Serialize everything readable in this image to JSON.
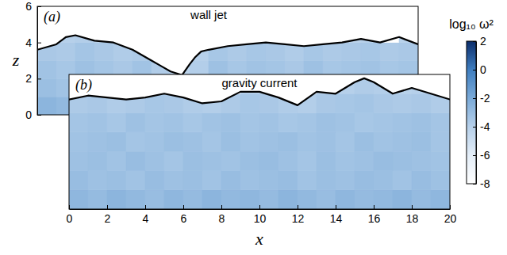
{
  "chart_data": [
    {
      "type": "heatmap",
      "panel_label": "(a)",
      "title": "wall jet",
      "ylabel": "z",
      "xlim": [
        0,
        20
      ],
      "ylim": [
        0,
        6
      ],
      "yticks": [
        0,
        2,
        4,
        6
      ],
      "tick_labels": "y",
      "heatmap": {
        "x_edges": [
          0,
          1,
          2,
          3,
          4,
          5,
          6,
          7,
          8,
          9,
          10,
          11,
          12,
          13,
          14,
          15,
          16,
          17,
          18,
          19,
          20
        ],
        "z_edges": [
          0,
          1,
          2,
          3,
          4,
          5,
          6
        ],
        "values": [
          [
            -2.6,
            -2.8,
            -2.5,
            -2.7,
            -2.9,
            -2.6,
            -2.8,
            -3.0,
            -2.7,
            -2.6,
            -2.8,
            -2.5,
            -2.7,
            -2.9,
            -2.6,
            -2.8,
            -2.7,
            -2.5,
            -2.8,
            -2.6
          ],
          [
            -3.1,
            -3.3,
            -3.0,
            -3.2,
            -3.4,
            -3.1,
            -3.5,
            -3.6,
            -3.2,
            -3.0,
            -3.3,
            -3.1,
            -3.2,
            -3.4,
            -3.0,
            -3.3,
            -3.2,
            -3.1,
            -3.3,
            -3.2
          ],
          [
            -3.3,
            -3.5,
            -3.2,
            -3.4,
            -3.6,
            -3.3,
            -3.8,
            -4.2,
            -3.9,
            -3.2,
            -3.5,
            -3.3,
            -3.4,
            -3.6,
            -3.2,
            -3.5,
            -3.4,
            -3.3,
            -3.5,
            -3.4
          ],
          [
            -3.6,
            -3.7,
            -3.4,
            -3.6,
            -3.8,
            -3.7,
            -8,
            -8,
            -4.0,
            -3.5,
            -3.7,
            -3.5,
            -3.6,
            -3.8,
            -3.5,
            -3.7,
            -3.6,
            -3.5,
            -3.7,
            -3.6
          ],
          [
            -8,
            -4.0,
            -3.9,
            -4.1,
            -8,
            -8,
            -8,
            -8,
            -8,
            -8,
            -8,
            -8,
            -8,
            -8,
            -8,
            -8,
            -4.2,
            -4.0,
            -8,
            -4.1
          ],
          [
            -8,
            -8,
            -8,
            -8,
            -8,
            -8,
            -8,
            -8,
            -8,
            -8,
            -8,
            -8,
            -8,
            -8,
            -8,
            -8,
            -8,
            -8,
            -8,
            -8
          ]
        ]
      },
      "series": [
        {
          "type": "line",
          "color": "#000000",
          "x": [
            0,
            1,
            1.5,
            2,
            3,
            4,
            5,
            6,
            6.5,
            7,
            7.6,
            8,
            8.3,
            8.6,
            9,
            10,
            11,
            12,
            13,
            14,
            15,
            16,
            17,
            18,
            19,
            20
          ],
          "values": [
            3.6,
            3.9,
            4.3,
            4.4,
            4.1,
            4.0,
            3.6,
            3.0,
            2.7,
            2.4,
            2.2,
            2.8,
            3.2,
            3.5,
            3.6,
            3.8,
            3.9,
            4.0,
            3.9,
            3.8,
            3.9,
            4.0,
            4.2,
            4.0,
            4.3,
            3.9
          ]
        }
      ],
      "colorbar": {
        "label": "log₁₀ ω²",
        "range": [
          -8,
          2
        ],
        "ticks": [
          -8,
          -6,
          -4,
          -2,
          0,
          2
        ]
      }
    },
    {
      "type": "heatmap",
      "panel_label": "(b)",
      "title": "gravity current",
      "xlabel": "x",
      "xlim": [
        0,
        20
      ],
      "ylim": [
        0,
        7
      ],
      "xticks": [
        0,
        2,
        4,
        6,
        8,
        10,
        12,
        14,
        16,
        18,
        20
      ],
      "tick_labels": "x",
      "heatmap": {
        "x_edges": [
          0,
          1,
          2,
          3,
          4,
          5,
          6,
          7,
          8,
          9,
          10,
          11,
          12,
          13,
          14,
          15,
          16,
          17,
          18,
          19,
          20
        ],
        "z_edges": [
          0,
          1,
          2,
          3,
          4,
          5,
          6,
          7
        ],
        "values": [
          [
            -2.7,
            -2.9,
            -2.6,
            -2.8,
            -3.0,
            -2.7,
            -2.9,
            -2.6,
            -2.8,
            -2.7,
            -2.9,
            -2.6,
            -2.8,
            -3.0,
            -2.7,
            -2.9,
            -2.8,
            -2.6,
            -2.9,
            -2.7
          ],
          [
            -3.0,
            -3.2,
            -3.1,
            -3.3,
            -3.0,
            -3.2,
            -3.1,
            -3.3,
            -3.0,
            -3.2,
            -3.1,
            -3.0,
            -3.3,
            -3.1,
            -3.2,
            -3.0,
            -3.1,
            -3.3,
            -3.0,
            -3.2
          ],
          [
            -3.2,
            -3.1,
            -3.3,
            -3.0,
            -3.2,
            -3.4,
            -3.1,
            -3.2,
            -3.3,
            -3.1,
            -3.0,
            -3.2,
            -3.4,
            -3.1,
            -3.3,
            -3.2,
            -3.0,
            -3.1,
            -3.2,
            -3.3
          ],
          [
            -3.3,
            -3.2,
            -3.1,
            -3.4,
            -3.3,
            -3.1,
            -3.2,
            -3.4,
            -3.1,
            -3.3,
            -3.2,
            -3.1,
            -3.3,
            -3.2,
            -3.4,
            -3.1,
            -3.3,
            -3.2,
            -3.1,
            -3.4
          ],
          [
            -3.4,
            -3.3,
            -3.5,
            -3.2,
            -3.4,
            -3.3,
            -3.5,
            -3.3,
            -3.2,
            -3.4,
            -3.3,
            -3.5,
            -3.4,
            -3.2,
            -3.3,
            -3.5,
            -3.4,
            -3.3,
            -3.2,
            -3.4
          ],
          [
            -3.7,
            -3.6,
            -3.8,
            -3.7,
            -3.5,
            -3.6,
            -3.8,
            -3.9,
            -3.7,
            -3.5,
            -3.6,
            -3.8,
            -3.9,
            -3.6,
            -3.5,
            -3.4,
            -3.6,
            -3.7,
            -3.6,
            -3.8
          ],
          [
            -8,
            -8,
            -8,
            -8,
            -8,
            -8,
            -8,
            -8,
            -8,
            -4.0,
            -4.1,
            -8,
            -8,
            -4.2,
            -4.0,
            -3.8,
            -3.9,
            -4.1,
            -4.0,
            -8
          ]
        ]
      },
      "series": [
        {
          "type": "line",
          "color": "#000000",
          "x": [
            0,
            1,
            2,
            3,
            4,
            5,
            6,
            7,
            8,
            9,
            10,
            11,
            12,
            13,
            14,
            15,
            15.5,
            16,
            17,
            18,
            19,
            20
          ],
          "values": [
            5.7,
            5.9,
            5.8,
            5.7,
            5.8,
            6.0,
            5.8,
            5.5,
            5.6,
            6.1,
            6.1,
            5.8,
            5.4,
            6.1,
            6.0,
            6.6,
            6.8,
            6.6,
            6.0,
            6.3,
            6.0,
            5.7
          ]
        }
      ]
    }
  ]
}
